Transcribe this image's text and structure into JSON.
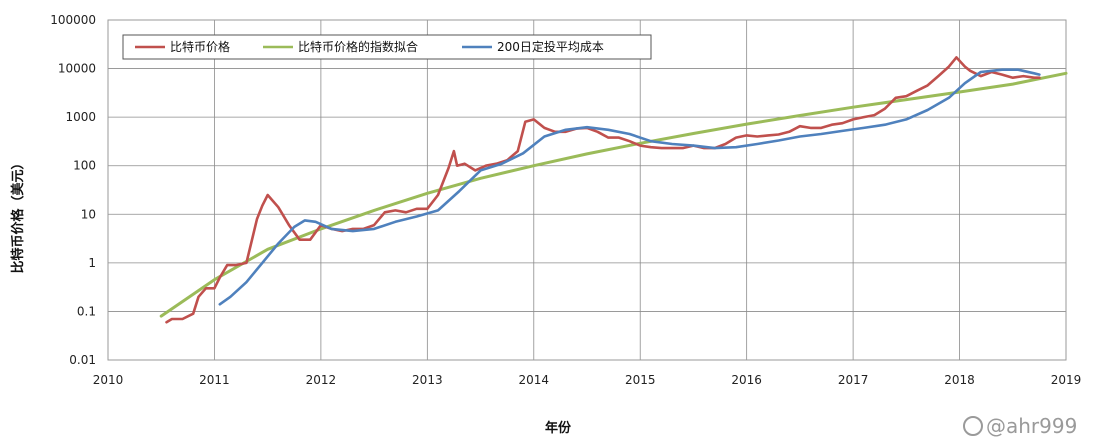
{
  "chart_data": {
    "type": "line",
    "title": "",
    "xlabel": "年份",
    "ylabel": "比特币价格（美元）",
    "yscale": "log",
    "xlim": [
      2010,
      2019
    ],
    "ylim": [
      0.01,
      100000
    ],
    "x_ticks": [
      "2010",
      "2011",
      "2012",
      "2013",
      "2014",
      "2015",
      "2016",
      "2017",
      "2018",
      "2019"
    ],
    "y_ticks": [
      "0.01",
      "0.1",
      "1",
      "10",
      "100",
      "1000",
      "10000",
      "100000"
    ],
    "grid": "vertical-and-horizontal",
    "legend_position": "top-left",
    "series": [
      {
        "name": "比特币价格",
        "color": "#c0504d",
        "x": [
          2010.55,
          2010.6,
          2010.7,
          2010.8,
          2010.85,
          2010.92,
          2011.0,
          2011.05,
          2011.12,
          2011.2,
          2011.3,
          2011.4,
          2011.45,
          2011.5,
          2011.6,
          2011.7,
          2011.8,
          2011.9,
          2012.0,
          2012.1,
          2012.2,
          2012.3,
          2012.4,
          2012.5,
          2012.6,
          2012.7,
          2012.8,
          2012.9,
          2013.0,
          2013.1,
          2013.2,
          2013.25,
          2013.28,
          2013.35,
          2013.45,
          2013.55,
          2013.65,
          2013.75,
          2013.85,
          2013.92,
          2014.0,
          2014.1,
          2014.2,
          2014.3,
          2014.4,
          2014.5,
          2014.6,
          2014.7,
          2014.8,
          2014.9,
          2015.0,
          2015.1,
          2015.2,
          2015.3,
          2015.4,
          2015.5,
          2015.6,
          2015.7,
          2015.8,
          2015.9,
          2016.0,
          2016.1,
          2016.2,
          2016.3,
          2016.4,
          2016.5,
          2016.6,
          2016.7,
          2016.8,
          2016.9,
          2017.0,
          2017.1,
          2017.2,
          2017.3,
          2017.4,
          2017.5,
          2017.6,
          2017.7,
          2017.8,
          2017.9,
          2017.97,
          2018.05,
          2018.1,
          2018.2,
          2018.3,
          2018.4,
          2018.5,
          2018.6,
          2018.7,
          2018.75
        ],
        "values": [
          0.06,
          0.07,
          0.07,
          0.09,
          0.2,
          0.3,
          0.3,
          0.5,
          0.9,
          0.9,
          1.0,
          8,
          15,
          25,
          14,
          6,
          3,
          3,
          6,
          5,
          4.5,
          5,
          5,
          6,
          11,
          12,
          11,
          13,
          13,
          25,
          90,
          200,
          100,
          110,
          80,
          100,
          110,
          130,
          200,
          800,
          900,
          600,
          500,
          500,
          580,
          600,
          500,
          380,
          380,
          320,
          260,
          240,
          230,
          230,
          230,
          260,
          230,
          230,
          280,
          380,
          420,
          400,
          420,
          440,
          500,
          650,
          600,
          600,
          700,
          750,
          900,
          1000,
          1100,
          1500,
          2500,
          2700,
          3500,
          4500,
          7000,
          11000,
          17000,
          11000,
          9000,
          7000,
          8500,
          7500,
          6500,
          7000,
          6500,
          6500
        ]
      },
      {
        "name": "比特币价格的指数拟合",
        "color": "#9bbb59",
        "x": [
          2010.5,
          2011.0,
          2011.5,
          2012.0,
          2012.5,
          2013.0,
          2013.5,
          2014.0,
          2014.5,
          2015.0,
          2015.5,
          2016.0,
          2016.5,
          2017.0,
          2017.5,
          2018.0,
          2018.5,
          2019.0
        ],
        "values": [
          0.08,
          0.45,
          1.9,
          5,
          12,
          27,
          55,
          100,
          175,
          290,
          460,
          720,
          1080,
          1600,
          2300,
          3300,
          4800,
          8000
        ]
      },
      {
        "name": "200日定投平均成本",
        "color": "#4f81bd",
        "x": [
          2011.05,
          2011.15,
          2011.3,
          2011.45,
          2011.6,
          2011.75,
          2011.85,
          2011.95,
          2012.1,
          2012.3,
          2012.5,
          2012.7,
          2012.9,
          2013.1,
          2013.3,
          2013.5,
          2013.7,
          2013.9,
          2014.1,
          2014.3,
          2014.5,
          2014.7,
          2014.9,
          2015.1,
          2015.3,
          2015.5,
          2015.7,
          2015.9,
          2016.1,
          2016.3,
          2016.5,
          2016.7,
          2016.9,
          2017.1,
          2017.3,
          2017.5,
          2017.7,
          2017.9,
          2018.05,
          2018.2,
          2018.4,
          2018.55,
          2018.7,
          2018.75
        ],
        "values": [
          0.14,
          0.2,
          0.4,
          1.0,
          2.5,
          5.5,
          7.5,
          7,
          5,
          4.5,
          5,
          7,
          9,
          12,
          30,
          80,
          110,
          180,
          400,
          550,
          620,
          550,
          450,
          320,
          280,
          260,
          230,
          240,
          280,
          330,
          400,
          450,
          520,
          600,
          700,
          900,
          1400,
          2500,
          5000,
          8500,
          9500,
          9500,
          8000,
          7500
        ]
      }
    ]
  },
  "watermark": "@ahr999"
}
